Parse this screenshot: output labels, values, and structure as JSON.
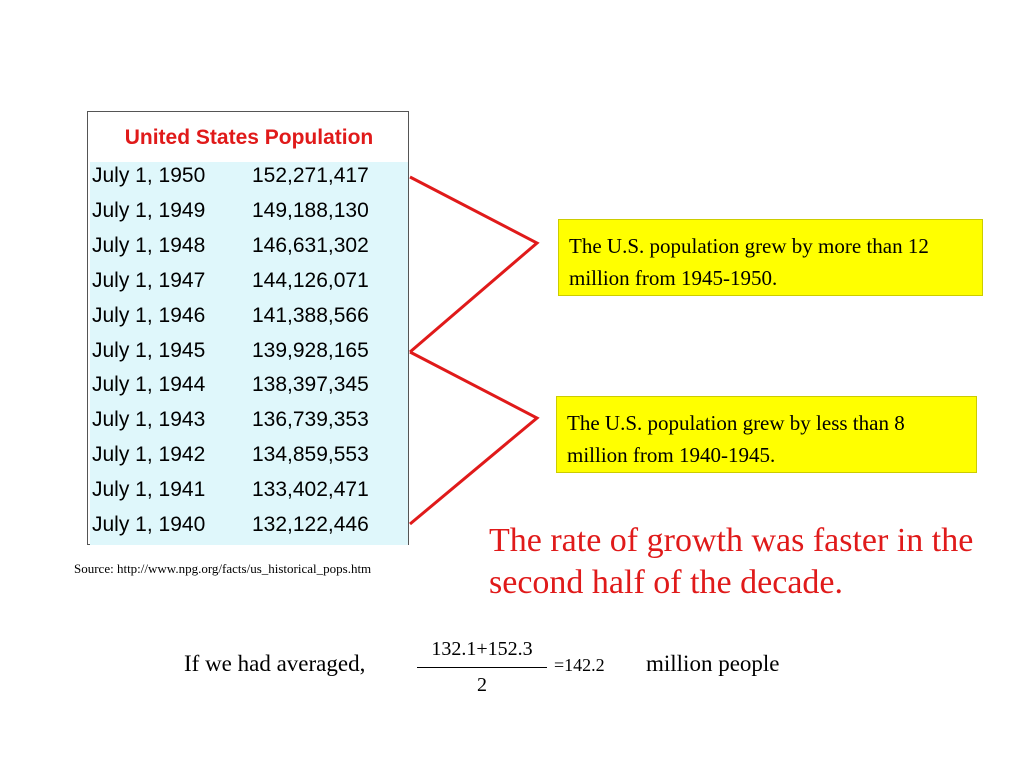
{
  "table": {
    "title": "United States Population",
    "rows": [
      {
        "date": "July 1, 1950",
        "population": "152,271,417"
      },
      {
        "date": "July 1, 1949",
        "population": "149,188,130"
      },
      {
        "date": "July 1, 1948",
        "population": "146,631,302"
      },
      {
        "date": "July 1, 1947",
        "population": "144,126,071"
      },
      {
        "date": "July 1, 1946",
        "population": "141,388,566"
      },
      {
        "date": "July 1, 1945",
        "population": "139,928,165"
      },
      {
        "date": "July 1, 1944",
        "population": "138,397,345"
      },
      {
        "date": "July 1, 1943",
        "population": "136,739,353"
      },
      {
        "date": "July 1, 1942",
        "population": "134,859,553"
      },
      {
        "date": "July 1, 1941",
        "population": "133,402,471"
      },
      {
        "date": "July 1, 1940",
        "population": "132,122,446"
      }
    ]
  },
  "source": "Source: http://www.npg.org/facts/us_historical_pops.htm",
  "notes": {
    "top": "The U.S. population grew by more than 12 million from 1945-1950.",
    "bottom": "The U.S. population grew by less than 8 million from 1940-1945."
  },
  "conclusion": "The rate of growth was faster in the second half of the decade.",
  "average": {
    "prefix": "If we had averaged,",
    "numerator": "132.1+152.3",
    "denominator": "2",
    "result": "=142.2",
    "suffix": "million people"
  },
  "colors": {
    "accent_red": "#e01a1a",
    "note_yellow": "#ffff00",
    "table_fill": "#dff7fb"
  }
}
